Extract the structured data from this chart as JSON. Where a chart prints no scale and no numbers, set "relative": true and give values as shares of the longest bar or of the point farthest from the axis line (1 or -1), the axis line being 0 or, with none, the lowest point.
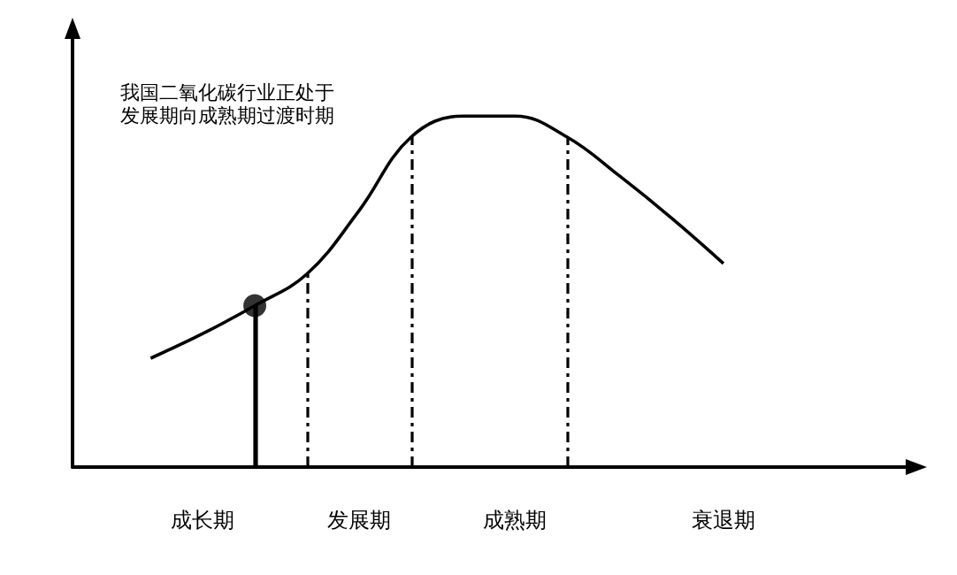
{
  "chart_data": {
    "type": "line",
    "relative": true,
    "categories": [
      null,
      null,
      "成长期",
      null,
      null,
      "发展期",
      null,
      null,
      "成熟期",
      null,
      null,
      null,
      "衰退期",
      null,
      null,
      null
    ],
    "series": [
      {
        "type": "line",
        "color": "#000000",
        "marker": "none",
        "values": [
          null,
          0.31,
          0.38,
          0.46,
          0.55,
          0.73,
          0.94,
          1.0,
          1.0,
          0.94,
          0.83,
          0.71,
          0.58,
          null,
          null,
          null
        ]
      },
      {
        "type": "scatter",
        "color": "#000000",
        "marker": "circle",
        "values": [
          null,
          null,
          null,
          0.46,
          null,
          null,
          null,
          null,
          null,
          null,
          null,
          null,
          null,
          null,
          null,
          null
        ]
      }
    ],
    "annotations": [
      "我国二氧化碳行业正处于发展期向成熟期过渡时期"
    ],
    "tick_labels": "x"
  }
}
